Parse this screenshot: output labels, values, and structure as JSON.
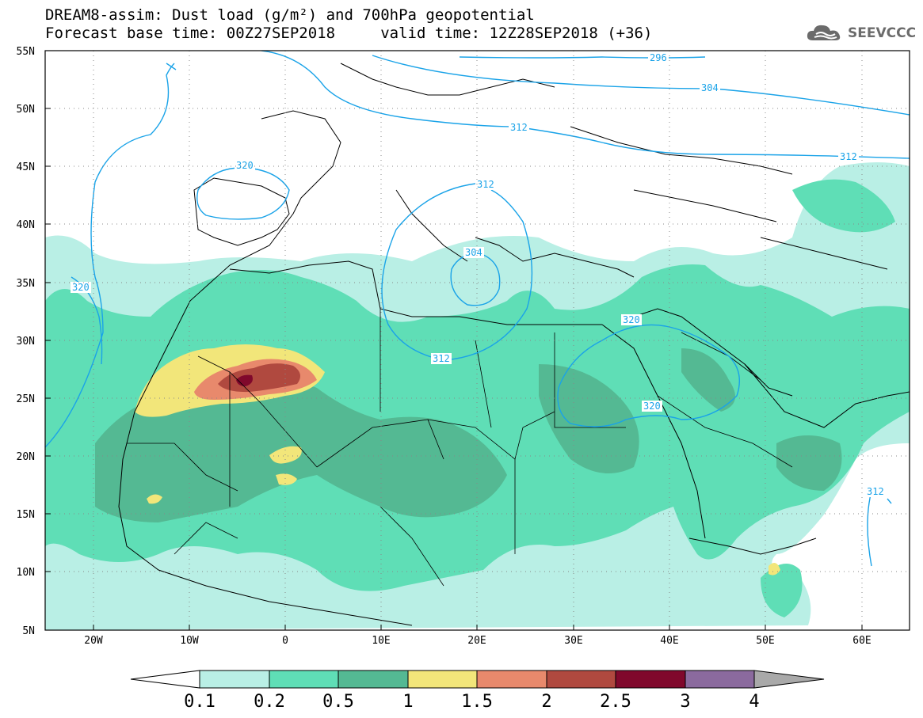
{
  "title": {
    "line1": "DREAM8-assim: Dust load (g/m²) and 700hPa geopotential",
    "line2": "Forecast base time: 00Z27SEP2018     valid time: 12Z28SEP2018 (+36)"
  },
  "logo": {
    "text": "SEEVCCC",
    "icon": "cloud-icon"
  },
  "axes": {
    "lat_labels": [
      "55N",
      "50N",
      "45N",
      "40N",
      "35N",
      "30N",
      "25N",
      "20N",
      "15N",
      "10N",
      "5N"
    ],
    "lon_labels": [
      "20W",
      "10W",
      "0",
      "10E",
      "20E",
      "30E",
      "40E",
      "50E",
      "60E"
    ]
  },
  "contours": {
    "color": "#1aa3e8",
    "labels": [
      "296",
      "304",
      "312",
      "320",
      "312",
      "304",
      "312",
      "320",
      "320",
      "312",
      "320",
      "312"
    ]
  },
  "colorbar": {
    "levels": [
      "0.1",
      "0.2",
      "0.5",
      "1",
      "1.5",
      "2",
      "2.5",
      "3",
      "4"
    ],
    "colors": [
      "#ffffff",
      "#b9efe5",
      "#5fdeb6",
      "#54b993",
      "#f2e67a",
      "#e8896c",
      "#b0493f",
      "#80082c",
      "#8b6a9e",
      "#a9a9a9"
    ]
  },
  "dust_colors": {
    "light": "#b9efe5",
    "medium": "#5fdeb6",
    "dark": "#54b993",
    "yellow": "#f2e67a",
    "orange": "#e8896c",
    "red": "#b0493f",
    "darkred": "#80082c"
  }
}
